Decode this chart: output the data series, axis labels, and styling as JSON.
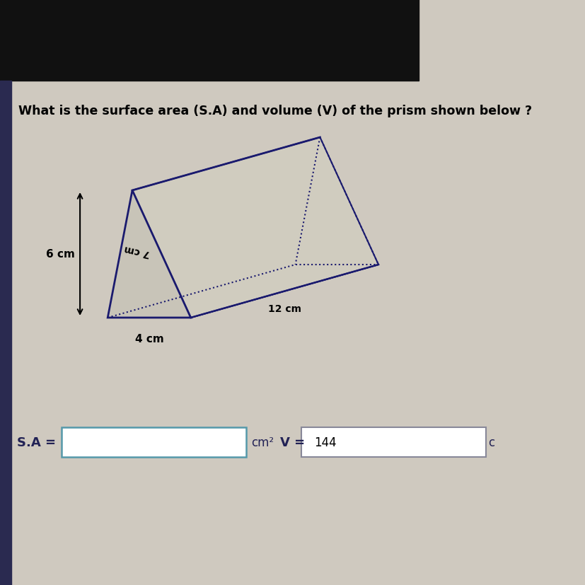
{
  "title": "What is the surface area (S.A) and volume (V) of the prism shown below ?",
  "title_fontsize": 12.5,
  "bg_color": "#cfc9bf",
  "top_bar_color": "#111111",
  "left_bar_color": "#2a2a50",
  "solid_color": "#1a1a6e",
  "fill_front": "#c8c4b8",
  "fill_bottom": "#b8b4a8",
  "fill_top": "#d0ccbf",
  "dim_6cm": "6 cm",
  "dim_7cm": "7 cm",
  "dim_4cm": "4 cm",
  "dim_12cm": "12 cm",
  "sa_label": "S.A =",
  "cm2_label": "cm²",
  "v_label": "V =",
  "v_value": "144",
  "cm3_label": "c"
}
